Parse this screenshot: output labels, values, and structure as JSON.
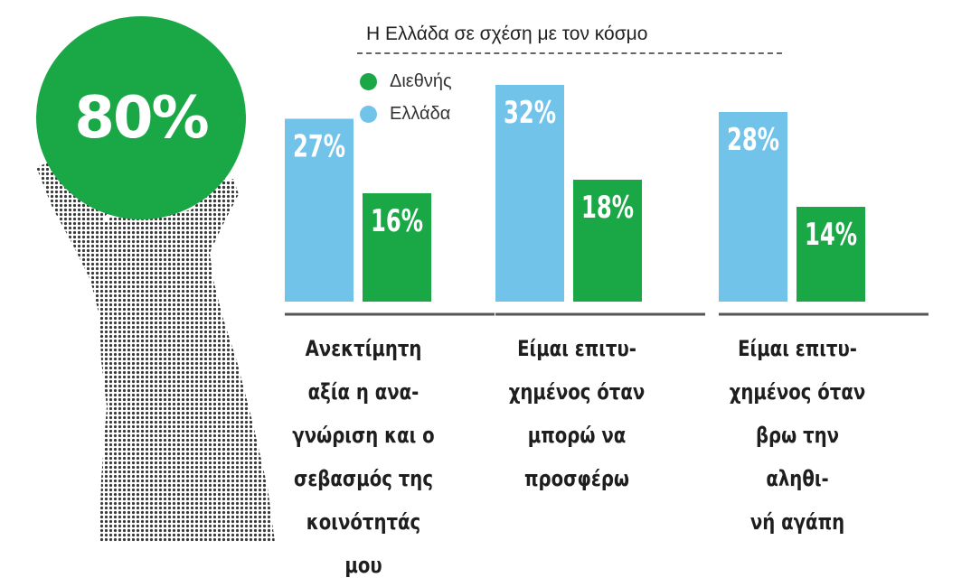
{
  "badge": {
    "value": "80%"
  },
  "chart_data": {
    "type": "bar",
    "title": "Η Ελλάδα σε σχέση με τον κόσμο",
    "categories": [
      "Ανεκτίμητη αξία η ανα-γνώριση και ο σεβασμός της κοινότητάς μου",
      "Είμαι επιτυ-χημένος όταν μπορώ να προσφέρω",
      "Είμαι επιτυ-χημένος όταν βρω την αληθι-νή αγάπη"
    ],
    "category_lines": [
      [
        "Ανεκτίμητη",
        "αξία η ανα-",
        "γνώριση και ο",
        "σεβασμός της",
        "κοινότητάς μου"
      ],
      [
        "Είμαι επιτυ-",
        "χημένος όταν",
        "μπορώ να",
        "προσφέρω"
      ],
      [
        "Είμαι επιτυ-",
        "χημένος όταν",
        "βρω την αληθι-",
        "νή αγάπη"
      ]
    ],
    "series": [
      {
        "name": "Ελλάδα",
        "color": "#72c3ea",
        "values": [
          27,
          32,
          28
        ],
        "labels": [
          "27%",
          "32%",
          "28%"
        ]
      },
      {
        "name": "Διεθνής",
        "color": "#1aa847",
        "values": [
          16,
          18,
          14
        ],
        "labels": [
          "16%",
          "18%",
          "14%"
        ]
      }
    ],
    "legend": [
      {
        "name": "Διεθνής",
        "color": "#1aa847"
      },
      {
        "name": "Ελλάδα",
        "color": "#72c3ea"
      }
    ],
    "legend_position": "top-left",
    "unit": "%",
    "ylim": [
      0,
      32
    ],
    "grid": false
  }
}
